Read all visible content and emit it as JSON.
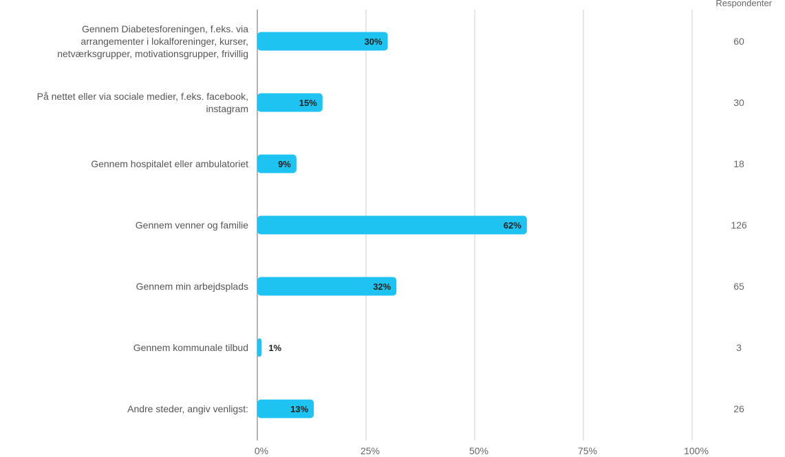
{
  "chart_data": {
    "type": "bar",
    "orientation": "horizontal",
    "categories": [
      [
        "Gennem Diabetesforeningen, f.eks. via",
        "arrangementer i lokalforeninger, kurser,",
        "netværksgrupper, motivationsgrupper, frivillig"
      ],
      [
        "På nettet eller via sociale medier, f.eks. facebook,",
        "instagram"
      ],
      [
        "Gennem hospitalet eller ambulatoriet"
      ],
      [
        "Gennem venner og familie"
      ],
      [
        "Gennem min arbejdsplads"
      ],
      [
        "Gennem kommunale tilbud"
      ],
      [
        "Andre steder, angiv venligst:"
      ]
    ],
    "values": [
      30,
      15,
      9,
      62,
      32,
      1,
      13
    ],
    "value_labels": [
      "30%",
      "15%",
      "9%",
      "62%",
      "32%",
      "1%",
      "13%"
    ],
    "respondents_header": "Respondenter",
    "respondents": [
      "60",
      "30",
      "18",
      "126",
      "65",
      "3",
      "26"
    ],
    "xlim": [
      0,
      100
    ],
    "xticks": [
      0,
      25,
      50,
      75,
      100
    ],
    "xtick_labels": [
      "0%",
      "25%",
      "50%",
      "75%",
      "100%"
    ],
    "grid": true,
    "bar_color": "#1fc3f2",
    "grid_color": "#cccccc",
    "axis_color": "#999999"
  }
}
